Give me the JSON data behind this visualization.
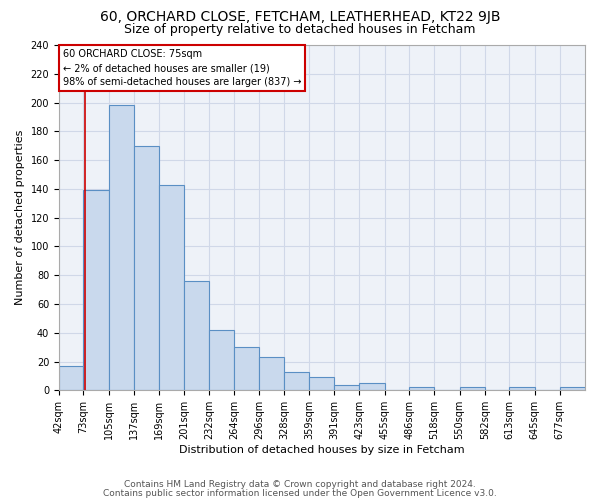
{
  "title": "60, ORCHARD CLOSE, FETCHAM, LEATHERHEAD, KT22 9JB",
  "subtitle": "Size of property relative to detached houses in Fetcham",
  "xlabel": "Distribution of detached houses by size in Fetcham",
  "ylabel": "Number of detached properties",
  "footnote1": "Contains HM Land Registry data © Crown copyright and database right 2024.",
  "footnote2": "Contains public sector information licensed under the Open Government Licence v3.0.",
  "bin_labels": [
    "42sqm",
    "73sqm",
    "105sqm",
    "137sqm",
    "169sqm",
    "201sqm",
    "232sqm",
    "264sqm",
    "296sqm",
    "328sqm",
    "359sqm",
    "391sqm",
    "423sqm",
    "455sqm",
    "486sqm",
    "518sqm",
    "550sqm",
    "582sqm",
    "613sqm",
    "645sqm",
    "677sqm"
  ],
  "bar_heights": [
    17,
    139,
    198,
    170,
    143,
    76,
    42,
    30,
    23,
    13,
    9,
    4,
    5,
    0,
    2,
    0,
    2,
    0,
    2,
    0,
    2
  ],
  "bar_color": "#c9d9ed",
  "bar_edge_color": "#5a8fc4",
  "grid_color": "#d0d8e8",
  "property_line_x": 75,
  "bin_edges_values": [
    42,
    73,
    105,
    137,
    169,
    201,
    232,
    264,
    296,
    328,
    359,
    391,
    423,
    455,
    486,
    518,
    550,
    582,
    613,
    645,
    677,
    709
  ],
  "annotation_text": "60 ORCHARD CLOSE: 75sqm\n← 2% of detached houses are smaller (19)\n98% of semi-detached houses are larger (837) →",
  "annotation_box_color": "#ffffff",
  "annotation_box_edge": "#cc0000",
  "vline_color": "#cc0000",
  "ylim": [
    0,
    240
  ],
  "yticks": [
    0,
    20,
    40,
    60,
    80,
    100,
    120,
    140,
    160,
    180,
    200,
    220,
    240
  ],
  "background_color": "#eef2f8",
  "title_fontsize": 10,
  "subtitle_fontsize": 9,
  "axis_label_fontsize": 8,
  "tick_fontsize": 7,
  "footnote_fontsize": 6.5
}
